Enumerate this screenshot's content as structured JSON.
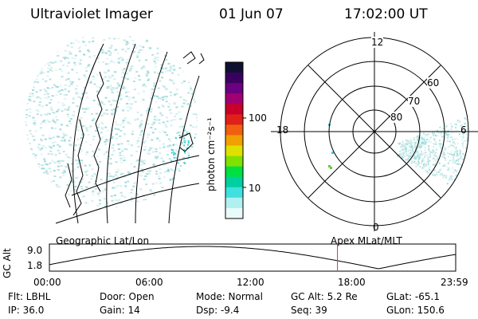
{
  "header": {
    "instrument": "Ultraviolet Imager",
    "date": "01 Jun 07",
    "time": "17:02:00 UT"
  },
  "colorbar": {
    "unit_label": "photon cm⁻²s⁻¹",
    "ticks": [
      "100",
      "10"
    ],
    "colors": [
      "#101030",
      "#3a0060",
      "#6b0080",
      "#a00070",
      "#c8002a",
      "#e0201a",
      "#f06010",
      "#f0a000",
      "#e0e000",
      "#80e000",
      "#00e040",
      "#00d0a0",
      "#40e0e0",
      "#b0f0f0",
      "#e8fafa"
    ]
  },
  "polar_plot": {
    "hour_labels": [
      "12",
      "18",
      "6",
      "0"
    ],
    "lat_labels": [
      "60",
      "70",
      "80"
    ]
  },
  "timeline": {
    "left_label": "Geographic Lat/Lon",
    "right_label": "Apex MLat/MLT",
    "axis_label": "GC Alt",
    "y_ticks": [
      "9.0",
      "1.8"
    ],
    "x_ticks": [
      "00:00",
      "06:00",
      "12:00",
      "18:00",
      "23:59"
    ],
    "current_time_fraction": 0.709,
    "line_color": "#000000",
    "marker_color": "#c04040"
  },
  "info": {
    "filter": "Flt: LBHL",
    "door": "Door: Open",
    "mode": "Mode: Normal",
    "gc_alt": "GC Alt: 5.2 Re",
    "glat": "GLat: -65.1",
    "ip": "IP: 36.0",
    "gain": "Gain: 14",
    "dsp": "Dsp:   -9.4",
    "seq": "Seq: 39",
    "glon": "GLon: 150.6"
  }
}
